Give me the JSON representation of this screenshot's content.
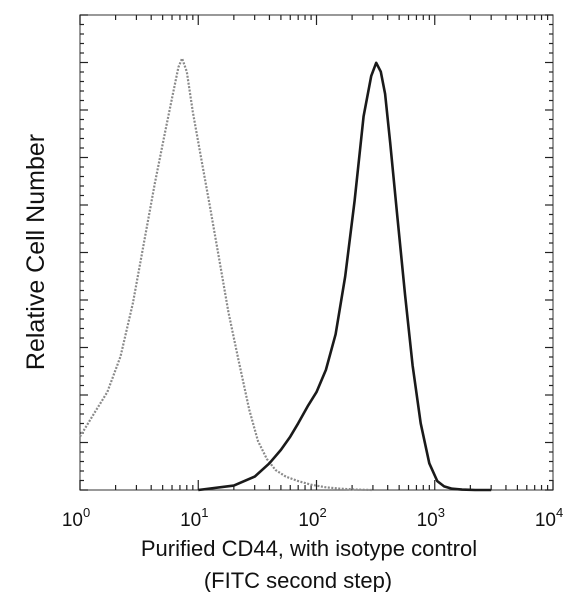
{
  "chart_data": {
    "type": "line",
    "title": "",
    "xlabel": "Purified CD44, with isotype control",
    "xlabel_line2": "(FITC second step)",
    "ylabel": "Relative Cell Number",
    "xscale": "log",
    "xlim": [
      1,
      10000
    ],
    "ylim": [
      0,
      100
    ],
    "grid": false,
    "legend": "none",
    "x_tick_values": [
      1,
      10,
      100,
      1000,
      10000
    ],
    "x_tick_labels": [
      {
        "base": "10",
        "exp": "0"
      },
      {
        "base": "10",
        "exp": "1"
      },
      {
        "base": "10",
        "exp": "2"
      },
      {
        "base": "10",
        "exp": "3"
      },
      {
        "base": "10",
        "exp": "4"
      }
    ],
    "series": [
      {
        "style": "gray",
        "color": "#8a8a8a",
        "x": [
          1.0,
          1.3,
          1.7,
          2.2,
          2.8,
          3.5,
          4.3,
          5.2,
          6.1,
          6.8,
          7.3,
          8.0,
          9.0,
          10.5,
          12.5,
          15,
          18,
          22,
          27,
          32,
          38,
          45,
          55,
          70,
          90,
          120,
          160,
          220,
          300
        ],
        "values": [
          12,
          17,
          22,
          30,
          42,
          56,
          69,
          80,
          89,
          95,
          97,
          94,
          85,
          75,
          64,
          52,
          40,
          29,
          18,
          11,
          7,
          4.5,
          3,
          2,
          1.2,
          0.6,
          0.3,
          0.1,
          0
        ]
      },
      {
        "style": "black",
        "color": "#1a1a1a",
        "x": [
          10,
          20,
          30,
          40,
          50,
          60,
          70,
          85,
          100,
          120,
          145,
          175,
          210,
          250,
          290,
          320,
          350,
          380,
          420,
          480,
          560,
          650,
          760,
          900,
          1050,
          1200,
          1400,
          1700,
          2200,
          3000
        ],
        "values": [
          0,
          1,
          3,
          6,
          9,
          12,
          15,
          19,
          22,
          27,
          35,
          48,
          65,
          84,
          93,
          96,
          94,
          89,
          78,
          62,
          44,
          28,
          15,
          6,
          2,
          0.8,
          0.3,
          0.1,
          0,
          0
        ]
      }
    ]
  }
}
